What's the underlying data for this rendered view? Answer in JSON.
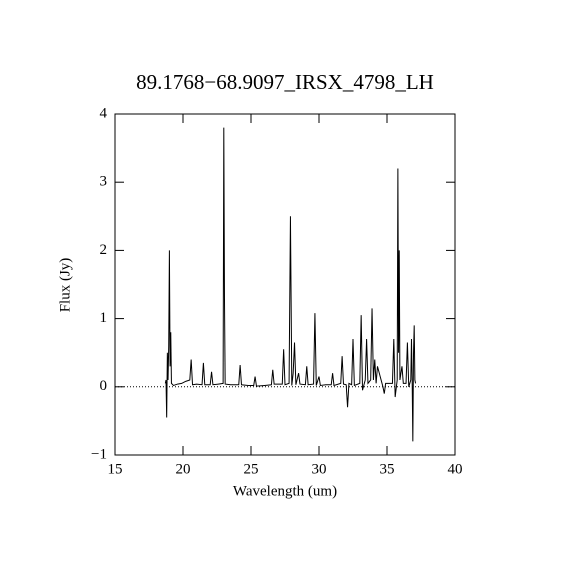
{
  "chart_data": {
    "type": "line",
    "title": "89.1768−68.9097_IRSX_4798_LH",
    "xlabel": "Wavelength (um)",
    "ylabel": "Flux (Jy)",
    "xlim": [
      15,
      40
    ],
    "ylim": [
      -1,
      4
    ],
    "xticks": [
      15,
      20,
      25,
      30,
      35,
      40
    ],
    "yticks": [
      {
        "value": -1,
        "label": "−1"
      },
      0,
      1,
      2,
      3,
      4
    ],
    "reference_line": 0,
    "series": [
      {
        "color": "#000000",
        "x": [
          18.7,
          18.75,
          18.8,
          18.85,
          18.9,
          18.95,
          19.0,
          19.05,
          19.1,
          19.15,
          19.3,
          19.6,
          19.9,
          20.2,
          20.5,
          20.6,
          20.7,
          21.0,
          21.4,
          21.5,
          21.6,
          22.0,
          22.1,
          22.2,
          22.6,
          22.95,
          23.0,
          23.05,
          23.1,
          23.5,
          24.1,
          24.2,
          24.3,
          24.8,
          25.2,
          25.3,
          25.4,
          26.0,
          26.5,
          26.6,
          26.7,
          27.3,
          27.4,
          27.5,
          27.8,
          27.9,
          28.0,
          28.1,
          28.2,
          28.3,
          28.5,
          28.6,
          29.0,
          29.1,
          29.2,
          29.6,
          29.7,
          29.8,
          30.0,
          30.1,
          30.5,
          30.9,
          31.0,
          31.1,
          31.6,
          31.7,
          31.8,
          32.0,
          32.1,
          32.2,
          32.4,
          32.5,
          32.6,
          33.0,
          33.1,
          33.2,
          33.4,
          33.5,
          33.6,
          33.8,
          33.9,
          34.0,
          34.1,
          34.2,
          34.3,
          34.7,
          34.8,
          34.9,
          35.4,
          35.5,
          35.6,
          35.75,
          35.8,
          35.85,
          35.9,
          35.95,
          36.1,
          36.2,
          36.4,
          36.5,
          36.6,
          36.75,
          36.8,
          36.85,
          36.9,
          36.95,
          37.0,
          37.05,
          37.1
        ],
        "values": [
          0.05,
          0.1,
          -0.45,
          0.5,
          0.1,
          0.6,
          2.0,
          0.3,
          0.8,
          0.05,
          0.02,
          0.04,
          0.05,
          0.08,
          0.1,
          0.4,
          0.03,
          0.04,
          0.03,
          0.35,
          0.03,
          0.03,
          0.22,
          0.03,
          0.04,
          0.05,
          3.8,
          1.3,
          0.04,
          0.03,
          0.03,
          0.32,
          0.03,
          0.02,
          0.02,
          0.15,
          0.01,
          0.02,
          0.03,
          0.25,
          0.04,
          0.04,
          0.55,
          0.03,
          0.05,
          2.5,
          0.02,
          0.2,
          0.65,
          0.03,
          0.2,
          0.04,
          0.03,
          0.3,
          0.03,
          0.04,
          1.08,
          0.02,
          0.15,
          0.02,
          0.03,
          0.03,
          0.2,
          0.02,
          0.05,
          0.45,
          0.04,
          0.03,
          -0.3,
          0.05,
          0.03,
          0.7,
          0.02,
          0.05,
          1.05,
          -0.05,
          0.1,
          0.7,
          0.05,
          0.1,
          1.15,
          0.1,
          0.4,
          0.05,
          0.3,
          0.0,
          -0.1,
          0.05,
          0.05,
          0.7,
          -0.15,
          0.1,
          3.2,
          0.5,
          2.0,
          0.1,
          0.3,
          0.05,
          0.05,
          0.65,
          0.0,
          0.1,
          0.7,
          0.1,
          -0.8,
          0.5,
          0.9,
          0.1,
          0.05
        ]
      }
    ]
  }
}
